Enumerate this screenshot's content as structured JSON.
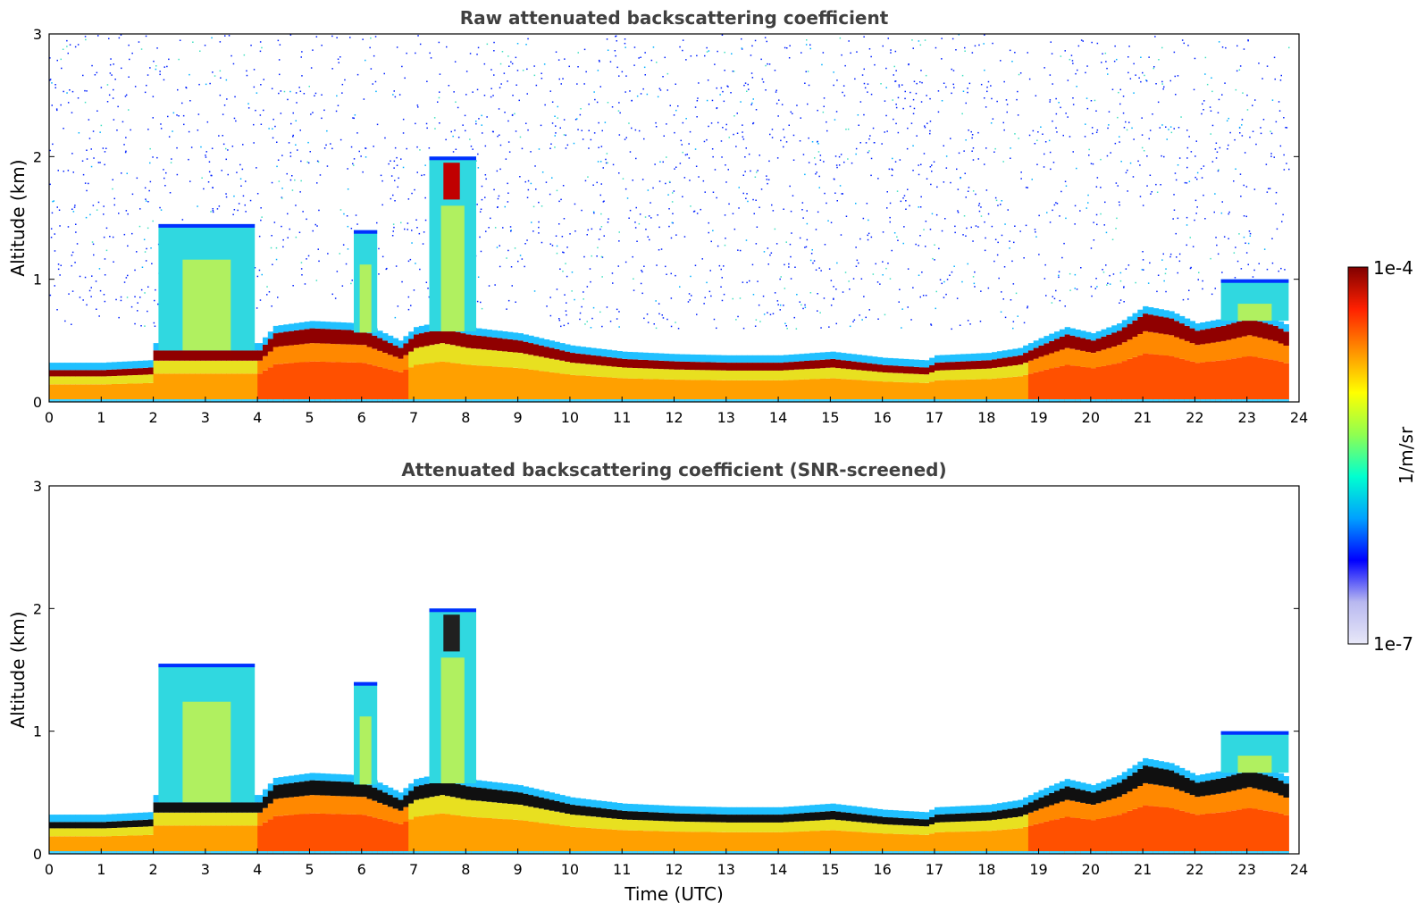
{
  "chart_data": [
    {
      "type": "heatmap",
      "title": "Raw attenuated backscattering coefficient",
      "xlabel": "",
      "ylabel": "Altitude (km)",
      "xlim": [
        0,
        24
      ],
      "ylim": [
        0,
        3
      ],
      "x_ticks": [
        "0",
        "1",
        "2",
        "3",
        "4",
        "5",
        "6",
        "7",
        "8",
        "9",
        "10",
        "11",
        "12",
        "13",
        "14",
        "15",
        "16",
        "17",
        "18",
        "19",
        "20",
        "21",
        "22",
        "23",
        "24"
      ],
      "y_ticks": [
        "0",
        "1",
        "2",
        "3"
      ],
      "noise": true,
      "features": [
        {
          "kind": "boundary_layer_top",
          "x": [
            0,
            1,
            1.9,
            2.0,
            4.0,
            4.3,
            5.0,
            6.0,
            6.7,
            7.0,
            7.5,
            8.0,
            9.0,
            10.0,
            11.0,
            12.0,
            13.0,
            14.0,
            15.0,
            16.0,
            16.8,
            17.0,
            18.0,
            18.6,
            19.0,
            19.5,
            20.0,
            20.5,
            21.0,
            21.5,
            22.0,
            22.5,
            23.0,
            23.5,
            23.8
          ],
          "y": [
            0.26,
            0.26,
            0.28,
            0.42,
            0.42,
            0.56,
            0.6,
            0.58,
            0.44,
            0.55,
            0.6,
            0.55,
            0.5,
            0.4,
            0.35,
            0.33,
            0.32,
            0.32,
            0.35,
            0.3,
            0.28,
            0.32,
            0.34,
            0.38,
            0.46,
            0.55,
            0.5,
            0.58,
            0.72,
            0.68,
            0.58,
            0.62,
            0.68,
            0.62,
            0.55
          ]
        },
        {
          "kind": "cloud",
          "x0": 2.1,
          "x1": 3.95,
          "top": 1.45
        },
        {
          "kind": "cloud",
          "x0": 5.85,
          "x1": 6.3,
          "top": 1.4
        },
        {
          "kind": "cloud",
          "x0": 7.3,
          "x1": 8.2,
          "top": 2.0
        },
        {
          "kind": "elevated_layer",
          "x0": 22.5,
          "x1": 23.8,
          "top": 1.0
        }
      ]
    },
    {
      "type": "heatmap",
      "title": "Attenuated backscattering coefficient (SNR-screened)",
      "xlabel": "Time (UTC)",
      "ylabel": "Altitude (km)",
      "xlim": [
        0,
        24
      ],
      "ylim": [
        0,
        3
      ],
      "x_ticks": [
        "0",
        "1",
        "2",
        "3",
        "4",
        "5",
        "6",
        "7",
        "8",
        "9",
        "10",
        "11",
        "12",
        "13",
        "14",
        "15",
        "16",
        "17",
        "18",
        "19",
        "20",
        "21",
        "22",
        "23",
        "24"
      ],
      "y_ticks": [
        "0",
        "1",
        "2",
        "3"
      ],
      "noise": false,
      "features": [
        {
          "kind": "boundary_layer_top",
          "x": [
            0,
            1,
            1.9,
            2.0,
            4.0,
            4.3,
            5.0,
            6.0,
            6.7,
            7.0,
            7.5,
            8.0,
            9.0,
            10.0,
            11.0,
            12.0,
            13.0,
            14.0,
            15.0,
            16.0,
            16.8,
            17.0,
            18.0,
            18.6,
            19.0,
            19.5,
            20.0,
            20.5,
            21.0,
            21.5,
            22.0,
            22.5,
            23.0,
            23.5,
            23.8
          ],
          "y": [
            0.26,
            0.26,
            0.28,
            0.42,
            0.42,
            0.56,
            0.6,
            0.58,
            0.44,
            0.55,
            0.6,
            0.55,
            0.5,
            0.4,
            0.35,
            0.33,
            0.32,
            0.32,
            0.35,
            0.3,
            0.28,
            0.32,
            0.34,
            0.38,
            0.46,
            0.55,
            0.5,
            0.58,
            0.72,
            0.68,
            0.58,
            0.62,
            0.68,
            0.62,
            0.55
          ]
        },
        {
          "kind": "cloud",
          "x0": 2.1,
          "x1": 3.95,
          "top": 1.55
        },
        {
          "kind": "cloud",
          "x0": 5.85,
          "x1": 6.3,
          "top": 1.4
        },
        {
          "kind": "cloud",
          "x0": 7.3,
          "x1": 8.2,
          "top": 2.0
        },
        {
          "kind": "elevated_layer",
          "x0": 22.5,
          "x1": 23.8,
          "top": 1.0
        }
      ]
    }
  ],
  "colorbar": {
    "label": "1/m/sr",
    "max_label": "1e-4",
    "min_label": "1e-7",
    "colors": [
      "#e8e8f8",
      "#b8b8f0",
      "#0000ff",
      "#00a0ff",
      "#00ffd0",
      "#90ff50",
      "#ffff00",
      "#ff9000",
      "#ff2000",
      "#800000"
    ]
  }
}
